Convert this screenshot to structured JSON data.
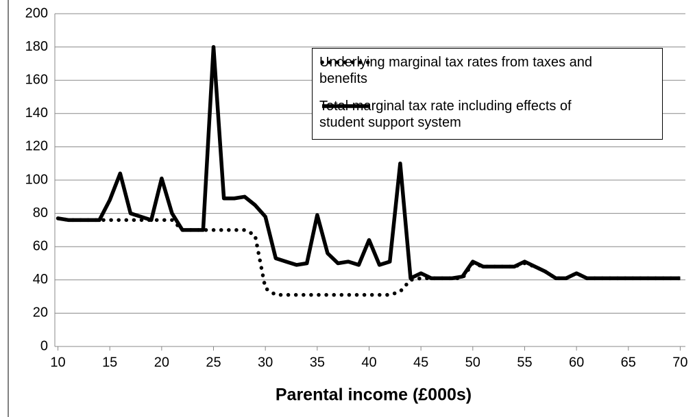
{
  "chart_data": {
    "type": "line",
    "xlabel": "Parental income (£000s)",
    "x": [
      10,
      11,
      12,
      13,
      14,
      15,
      16,
      17,
      18,
      19,
      20,
      21,
      22,
      23,
      24,
      25,
      26,
      27,
      28,
      29,
      30,
      31,
      32,
      33,
      34,
      35,
      36,
      37,
      38,
      39,
      40,
      41,
      42,
      43,
      44,
      45,
      46,
      47,
      48,
      49,
      50,
      51,
      52,
      53,
      54,
      55,
      56,
      57,
      58,
      59,
      60,
      61,
      62,
      63,
      64,
      65,
      66,
      67,
      68,
      69,
      70
    ],
    "series": [
      {
        "name": "Underlying marginal tax rates from taxes and benefits",
        "color": "#000000",
        "style": "dotted",
        "values": [
          77,
          76,
          76,
          76,
          76,
          76,
          76,
          76,
          76,
          76,
          76,
          76,
          70,
          70,
          70,
          70,
          70,
          70,
          70,
          67,
          35,
          31,
          31,
          31,
          31,
          31,
          31,
          31,
          31,
          31,
          31,
          31,
          31,
          33,
          40,
          41,
          41,
          41,
          41,
          41,
          50,
          48,
          48,
          48,
          48,
          50,
          48,
          45,
          41,
          41,
          44,
          41,
          41,
          41,
          41,
          41,
          41,
          41,
          41,
          41,
          41
        ]
      },
      {
        "name": "Total marginal tax rate including effects of student support system",
        "color": "#000000",
        "style": "solid",
        "values": [
          77,
          76,
          76,
          76,
          76,
          88,
          104,
          80,
          78,
          76,
          101,
          80,
          70,
          70,
          70,
          180,
          89,
          89,
          90,
          85,
          78,
          53,
          51,
          49,
          50,
          79,
          56,
          50,
          51,
          49,
          64,
          49,
          51,
          110,
          41,
          44,
          41,
          41,
          41,
          42,
          51,
          48,
          48,
          48,
          48,
          51,
          48,
          45,
          41,
          41,
          44,
          41,
          41,
          41,
          41,
          41,
          41,
          41,
          41,
          41,
          41
        ]
      }
    ],
    "xlim": [
      9.7,
      70.5
    ],
    "xticks": [
      10,
      15,
      20,
      25,
      30,
      35,
      40,
      45,
      50,
      55,
      60,
      65,
      70
    ],
    "ylim": [
      0,
      200
    ],
    "yticks": [
      0,
      20,
      40,
      60,
      80,
      100,
      120,
      140,
      160,
      180,
      200
    ],
    "grid": true,
    "legend": "upper right"
  }
}
